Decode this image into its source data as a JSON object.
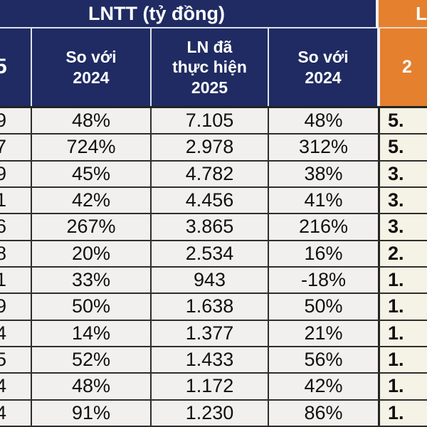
{
  "colors": {
    "navy_header": "#1f2b62",
    "orange_header": "#e5802f",
    "data_cell_bg": "#f1f0ee",
    "orange_col_bg": "#f5f2e6",
    "grid_line": "#2e2e2e",
    "header_divider": "#dfe3ee"
  },
  "table": {
    "group_header_left": "LNTT (tỷ đồng)",
    "group_header_right_fragment": "L",
    "columns": [
      {
        "id": "col-plan-cut",
        "header_fragment": "5"
      },
      {
        "id": "col-vs-2024-a",
        "header": "So với 2024"
      },
      {
        "id": "col-ln-2025",
        "header": "LN đã thực hiện 2025"
      },
      {
        "id": "col-vs-2024-b",
        "header": "So với 2024"
      },
      {
        "id": "col-right-cut",
        "header_fragment": "2"
      }
    ],
    "rows": [
      {
        "c1": "9",
        "c2": "48%",
        "c3": "7.105",
        "c4": "48%",
        "c5": "5."
      },
      {
        "c1": "7",
        "c2": "724%",
        "c3": "2.978",
        "c4": "312%",
        "c5": "5."
      },
      {
        "c1": "9",
        "c2": "45%",
        "c3": "4.782",
        "c4": "38%",
        "c5": "3."
      },
      {
        "c1": "1",
        "c2": "42%",
        "c3": "4.456",
        "c4": "41%",
        "c5": "3."
      },
      {
        "c1": "6",
        "c2": "267%",
        "c3": "3.865",
        "c4": "216%",
        "c5": "3."
      },
      {
        "c1": "8",
        "c2": "20%",
        "c3": "2.534",
        "c4": "16%",
        "c5": "2."
      },
      {
        "c1": "1",
        "c2": "33%",
        "c3": "943",
        "c4": "-18%",
        "c5": "1."
      },
      {
        "c1": "9",
        "c2": "50%",
        "c3": "1.638",
        "c4": "50%",
        "c5": "1."
      },
      {
        "c1": "4",
        "c2": "14%",
        "c3": "1.377",
        "c4": "21%",
        "c5": "1."
      },
      {
        "c1": "5",
        "c2": "52%",
        "c3": "1.433",
        "c4": "56%",
        "c5": "1."
      },
      {
        "c1": "4",
        "c2": "48%",
        "c3": "1.172",
        "c4": "42%",
        "c5": "1."
      },
      {
        "c1": "4",
        "c2": "91%",
        "c3": "1.230",
        "c4": "86%",
        "c5": "1."
      }
    ]
  },
  "chart_data": {
    "type": "table",
    "title": "LNTT (tỷ đồng)",
    "columns": [
      "(cut) 5",
      "So với 2024",
      "LN đã thực hiện 2025",
      "So với 2024",
      "(cut) 2"
    ],
    "rows": [
      [
        "9",
        "48%",
        "7.105",
        "48%",
        "5."
      ],
      [
        "7",
        "724%",
        "2.978",
        "312%",
        "5."
      ],
      [
        "9",
        "45%",
        "4.782",
        "38%",
        "3."
      ],
      [
        "1",
        "42%",
        "4.456",
        "41%",
        "3."
      ],
      [
        "6",
        "267%",
        "3.865",
        "216%",
        "3."
      ],
      [
        "8",
        "20%",
        "2.534",
        "16%",
        "2."
      ],
      [
        "1",
        "33%",
        "943",
        "-18%",
        "1."
      ],
      [
        "9",
        "50%",
        "1.638",
        "50%",
        "1."
      ],
      [
        "4",
        "14%",
        "1.377",
        "21%",
        "1."
      ],
      [
        "5",
        "52%",
        "1.433",
        "56%",
        "1."
      ],
      [
        "4",
        "48%",
        "1.172",
        "42%",
        "1."
      ],
      [
        "4",
        "91%",
        "1.230",
        "86%",
        "1."
      ]
    ]
  }
}
